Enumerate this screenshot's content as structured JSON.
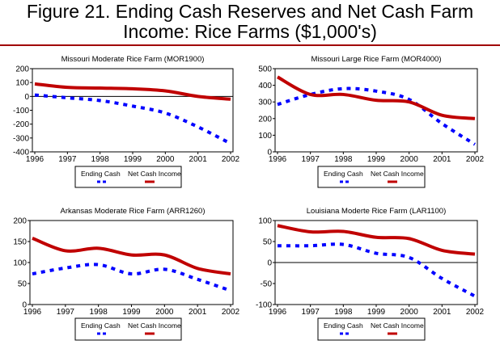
{
  "title_line1": "Figure 21. Ending Cash Reserves and Net Cash Farm",
  "title_line2": "Income:  Rice Farms ($1,000's)",
  "colors": {
    "ending_cash": "#0000ff",
    "net_cash_income": "#c00000",
    "rule": "#a00000"
  },
  "chart_data": [
    {
      "type": "line",
      "title": "Missouri Moderate Rice Farm (MOR1900)",
      "x": [
        1996,
        1997,
        1998,
        1999,
        2000,
        2001,
        2002
      ],
      "ylim": [
        -400,
        200
      ],
      "ystep": 100,
      "legend": "bottom",
      "series": [
        {
          "name": "Ending Cash",
          "values": [
            10,
            -10,
            -30,
            -70,
            -120,
            -220,
            -340
          ]
        },
        {
          "name": "Net Cash Income",
          "values": [
            90,
            65,
            60,
            55,
            40,
            0,
            -20
          ]
        }
      ]
    },
    {
      "type": "line",
      "title": "Missouri Large Rice Farm (MOR4000)",
      "x": [
        1996,
        1997,
        1998,
        1999,
        2000,
        2001,
        2002
      ],
      "ylim": [
        0,
        500
      ],
      "ystep": 100,
      "legend": "bottom",
      "series": [
        {
          "name": "Ending Cash",
          "values": [
            285,
            345,
            380,
            365,
            315,
            170,
            45
          ]
        },
        {
          "name": "Net Cash Income",
          "values": [
            450,
            345,
            345,
            310,
            300,
            220,
            200
          ]
        }
      ]
    },
    {
      "type": "line",
      "title": "Arkansas Moderate Rice Farm (ARR1260)",
      "x": [
        1996,
        1997,
        1998,
        1999,
        2000,
        2001,
        2002
      ],
      "ylim": [
        0,
        200
      ],
      "ystep": 50,
      "legend": "bottom",
      "series": [
        {
          "name": "Ending Cash",
          "values": [
            73,
            87,
            95,
            73,
            84,
            60,
            33
          ]
        },
        {
          "name": "Net Cash Income",
          "values": [
            158,
            128,
            134,
            118,
            118,
            86,
            73
          ]
        }
      ]
    },
    {
      "type": "line",
      "title": "Louisiana Moderte Rice Farm (LAR1100)",
      "x": [
        1996,
        1997,
        1998,
        1999,
        2000,
        2001,
        2002
      ],
      "ylim": [
        -100,
        100
      ],
      "ystep": 50,
      "legend": "bottom",
      "series": [
        {
          "name": "Ending Cash",
          "values": [
            40,
            40,
            43,
            22,
            12,
            -38,
            -80
          ]
        },
        {
          "name": "Net Cash Income",
          "values": [
            88,
            73,
            74,
            60,
            57,
            29,
            20
          ]
        }
      ]
    }
  ]
}
